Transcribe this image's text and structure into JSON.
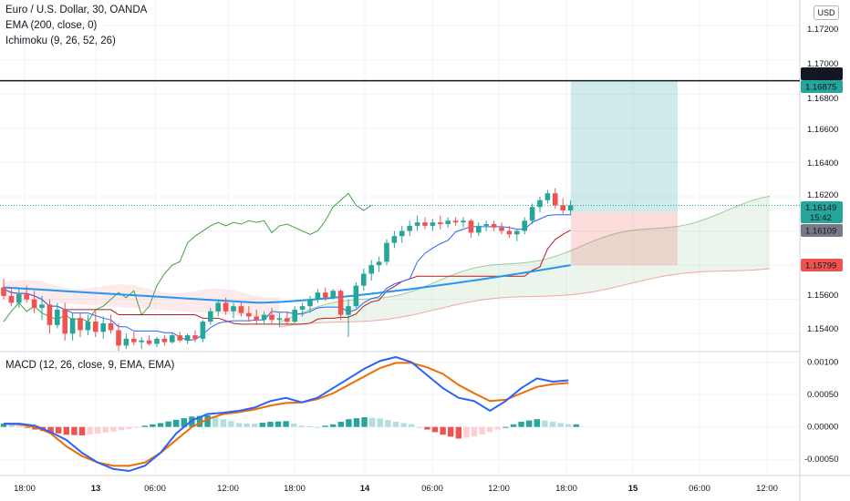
{
  "legend": {
    "symbol": "Euro / U.S. Dollar, 30, OANDA",
    "ema": "EMA (200, close, 0)",
    "ichimoku": "Ichimoku (9, 26, 52, 26)",
    "macd": "MACD (12, 26, close, 9, EMA, EMA)"
  },
  "currency_button": "USD",
  "colors": {
    "bull": "#26a69a",
    "bear": "#ef5350",
    "ema": "#2196f3",
    "kijun": "#b71c1c",
    "tenkan": "#2962ff",
    "chikou": "#43a047",
    "macd_line": "#2962ff",
    "signal_line": "#ef6c00",
    "hist_pos_strong": "#26a69a",
    "hist_pos_weak": "#b2dfdb",
    "hist_neg_strong": "#ef5350",
    "hist_neg_weak": "#ffcdd2"
  },
  "price_axis": [
    "1.17200",
    "1.17000",
    "1.16800",
    "1.16600",
    "1.16400",
    "1.16200",
    "1.15600",
    "1.15400"
  ],
  "macd_axis": [
    "0.00100",
    "0.00050",
    "0.00000",
    "-0.00050"
  ],
  "price_labels": {
    "horizontal_line": "1.16878",
    "target": "1.16875",
    "last": "1.16149",
    "countdown": "15:42",
    "entry": "1.16109",
    "stop": "1.15799"
  },
  "time_axis": [
    "18:00",
    "13",
    "06:00",
    "12:00",
    "18:00",
    "14",
    "06:00",
    "12:00",
    "18:00",
    "15",
    "06:00",
    "12:00"
  ],
  "chart_data": {
    "type": "candlestick",
    "symbol": "EURUSD",
    "timeframe": "30",
    "price_range": [
      1.153,
      1.1735
    ],
    "time_axis_labels": [
      "18:00",
      "13",
      "06:00",
      "12:00",
      "18:00",
      "14",
      "06:00",
      "12:00",
      "18:00",
      "15",
      "06:00",
      "12:00"
    ],
    "candles": [
      [
        1.1567,
        1.1572,
        1.156,
        1.1562
      ],
      [
        1.1562,
        1.1566,
        1.1556,
        1.1558
      ],
      [
        1.1558,
        1.1566,
        1.1555,
        1.1563
      ],
      [
        1.1563,
        1.1568,
        1.1558,
        1.156
      ],
      [
        1.156,
        1.1565,
        1.1552,
        1.1555
      ],
      [
        1.1555,
        1.1562,
        1.1548,
        1.1557
      ],
      [
        1.1557,
        1.156,
        1.154,
        1.1545
      ],
      [
        1.1545,
        1.1558,
        1.1543,
        1.1554
      ],
      [
        1.1554,
        1.1558,
        1.1536,
        1.154
      ],
      [
        1.154,
        1.1552,
        1.1536,
        1.1549
      ],
      [
        1.1549,
        1.1552,
        1.1538,
        1.1542
      ],
      [
        1.1542,
        1.1551,
        1.1539,
        1.1547
      ],
      [
        1.1547,
        1.1553,
        1.1538,
        1.1541
      ],
      [
        1.1541,
        1.155,
        1.1537,
        1.1546
      ],
      [
        1.1546,
        1.1551,
        1.154,
        1.1542
      ],
      [
        1.1542,
        1.1546,
        1.153,
        1.1533
      ],
      [
        1.1533,
        1.154,
        1.1531,
        1.1537
      ],
      [
        1.1537,
        1.1541,
        1.1533,
        1.1535
      ],
      [
        1.1535,
        1.1538,
        1.1531,
        1.1536
      ],
      [
        1.1536,
        1.1539,
        1.1533,
        1.1534
      ],
      [
        1.1534,
        1.1538,
        1.1532,
        1.1537
      ],
      [
        1.1537,
        1.1539,
        1.1533,
        1.1535
      ],
      [
        1.1535,
        1.154,
        1.1534,
        1.1539
      ],
      [
        1.1539,
        1.1541,
        1.1535,
        1.1536
      ],
      [
        1.1536,
        1.154,
        1.1534,
        1.1539
      ],
      [
        1.1539,
        1.1542,
        1.1535,
        1.1537
      ],
      [
        1.1537,
        1.1548,
        1.1535,
        1.1547
      ],
      [
        1.1547,
        1.1555,
        1.1545,
        1.1553
      ],
      [
        1.1553,
        1.156,
        1.155,
        1.1558
      ],
      [
        1.1558,
        1.1561,
        1.1551,
        1.1553
      ],
      [
        1.1553,
        1.1558,
        1.1549,
        1.1556
      ],
      [
        1.1556,
        1.1559,
        1.155,
        1.1552
      ],
      [
        1.1552,
        1.1556,
        1.1547,
        1.155
      ],
      [
        1.155,
        1.1554,
        1.1545,
        1.1548
      ],
      [
        1.1548,
        1.1553,
        1.1546,
        1.1551
      ],
      [
        1.1551,
        1.1555,
        1.1546,
        1.1548
      ],
      [
        1.1548,
        1.1552,
        1.1544,
        1.1549
      ],
      [
        1.1549,
        1.1553,
        1.1545,
        1.1547
      ],
      [
        1.1547,
        1.1556,
        1.1546,
        1.1554
      ],
      [
        1.1554,
        1.1558,
        1.155,
        1.1556
      ],
      [
        1.1556,
        1.1562,
        1.1552,
        1.156
      ],
      [
        1.156,
        1.1566,
        1.1558,
        1.1564
      ],
      [
        1.1564,
        1.1567,
        1.1559,
        1.1561
      ],
      [
        1.1561,
        1.1566,
        1.156,
        1.1565
      ],
      [
        1.1565,
        1.1566,
        1.1548,
        1.1551
      ],
      [
        1.1551,
        1.156,
        1.1538,
        1.1556
      ],
      [
        1.1556,
        1.157,
        1.1555,
        1.1568
      ],
      [
        1.1568,
        1.1578,
        1.1565,
        1.1575
      ],
      [
        1.1575,
        1.1583,
        1.1571,
        1.158
      ],
      [
        1.158,
        1.1585,
        1.1576,
        1.1582
      ],
      [
        1.1582,
        1.1595,
        1.158,
        1.1593
      ],
      [
        1.1593,
        1.16,
        1.159,
        1.1597
      ],
      [
        1.1597,
        1.1603,
        1.1593,
        1.16
      ],
      [
        1.16,
        1.1606,
        1.1597,
        1.1603
      ],
      [
        1.1603,
        1.1609,
        1.16,
        1.1605
      ],
      [
        1.1605,
        1.1608,
        1.1601,
        1.1603
      ],
      [
        1.1603,
        1.1607,
        1.16,
        1.1605
      ],
      [
        1.1605,
        1.1609,
        1.1601,
        1.1604
      ],
      [
        1.1604,
        1.1608,
        1.1602,
        1.1606
      ],
      [
        1.1606,
        1.1608,
        1.1603,
        1.1605
      ],
      [
        1.1605,
        1.1608,
        1.1602,
        1.1606
      ],
      [
        1.1606,
        1.1607,
        1.1596,
        1.1599
      ],
      [
        1.1599,
        1.1605,
        1.1597,
        1.1603
      ],
      [
        1.1603,
        1.1606,
        1.16,
        1.1604
      ],
      [
        1.1604,
        1.1606,
        1.16,
        1.1602
      ],
      [
        1.1602,
        1.1605,
        1.1598,
        1.16
      ],
      [
        1.16,
        1.1603,
        1.1596,
        1.1598
      ],
      [
        1.1598,
        1.1601,
        1.1594,
        1.16
      ],
      [
        1.16,
        1.1608,
        1.1598,
        1.1606
      ],
      [
        1.1606,
        1.1616,
        1.1604,
        1.1614
      ],
      [
        1.1614,
        1.162,
        1.1611,
        1.1618
      ],
      [
        1.1618,
        1.1624,
        1.1616,
        1.1622
      ],
      [
        1.1622,
        1.1625,
        1.1613,
        1.1615
      ],
      [
        1.1615,
        1.1619,
        1.161,
        1.1612
      ],
      [
        1.1612,
        1.1618,
        1.1609,
        1.1615
      ]
    ],
    "ema_200": {
      "start": 1.1567,
      "min": 1.1558,
      "end": 1.158
    },
    "ichimoku": {
      "kijun_sen": "red",
      "tenkan_sen": "blue",
      "chikou_span": "green",
      "kumo": "cloud"
    },
    "position": {
      "type": "long",
      "entry": 1.16109,
      "target": 1.16875,
      "stop": 1.15799
    },
    "horizontal_line": 1.16878,
    "last_price": 1.16149,
    "macd": {
      "params": "12, 26, close, 9, EMA, EMA",
      "y_range": [
        -0.00075,
        0.00115
      ],
      "y_ticks": [
        0.001,
        0.0005,
        0.0,
        -0.0005
      ],
      "macd_line": [
        5e-05,
        5e-05,
        2e-05,
        -8e-05,
        -0.0002,
        -0.0004,
        -0.00055,
        -0.00065,
        -0.00068,
        -0.0006,
        -0.0004,
        -0.0001,
        0.0001,
        0.0002,
        0.00022,
        0.00025,
        0.0003,
        0.0004,
        0.00045,
        0.00038,
        0.00045,
        0.0006,
        0.00075,
        0.0009,
        0.00102,
        0.00108,
        0.001,
        0.0008,
        0.0006,
        0.00045,
        0.0004,
        0.00025,
        0.0004,
        0.0006,
        0.00075,
        0.0007,
        0.00072
      ],
      "signal_line": [
        5e-05,
        4e-05,
        0.0,
        -0.0001,
        -0.0003,
        -0.00045,
        -0.00055,
        -0.0006,
        -0.0006,
        -0.00055,
        -0.0004,
        -0.0002,
        0.0,
        0.00012,
        0.0002,
        0.00023,
        0.00027,
        0.00033,
        0.00037,
        0.00038,
        0.00043,
        0.00052,
        0.00065,
        0.00078,
        0.00091,
        0.00099,
        0.00099,
        0.00092,
        0.00082,
        0.00065,
        0.00052,
        0.0004,
        0.00042,
        0.00052,
        0.00062,
        0.00066,
        0.00068
      ],
      "histogram": [
        5e-05,
        2e-05,
        -4e-05,
        -8e-05,
        -0.00012,
        -0.00013,
        -0.0001,
        -7e-05,
        -3e-05,
        2e-05,
        6e-05,
        0.00011,
        0.00016,
        0.00018,
        0.00012,
        6e-05,
        5e-05,
        8e-05,
        9e-05,
        2e-05,
        0.0,
        4e-05,
        0.00012,
        0.00015,
        0.00013,
        8e-05,
        4e-05,
        -4e-05,
        -0.00012,
        -0.00018,
        -0.00015,
        -8e-05,
        0.0,
        8e-05,
        0.00012,
        8e-05,
        4e-05
      ]
    }
  }
}
